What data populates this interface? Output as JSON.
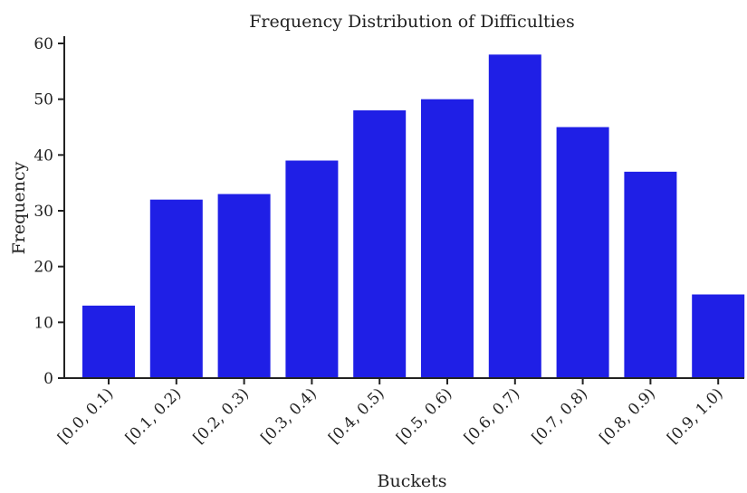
{
  "chart_data": {
    "type": "bar",
    "title": "Frequency Distribution of Difficulties",
    "xlabel": "Buckets",
    "ylabel": "Frequency",
    "categories": [
      "[0.0, 0.1)",
      "[0.1, 0.2)",
      "[0.2, 0.3)",
      "[0.3, 0.4)",
      "[0.4, 0.5)",
      "[0.5, 0.6)",
      "[0.6, 0.7)",
      "[0.7, 0.8)",
      "[0.8, 0.9)",
      "[0.9, 1.0)"
    ],
    "values": [
      13,
      32,
      33,
      39,
      48,
      50,
      58,
      45,
      37,
      15
    ],
    "ylim": [
      0,
      60
    ],
    "yticks": [
      0,
      10,
      20,
      30,
      40,
      50,
      60
    ],
    "bar_color": "#1f1fe6",
    "grid": false
  }
}
